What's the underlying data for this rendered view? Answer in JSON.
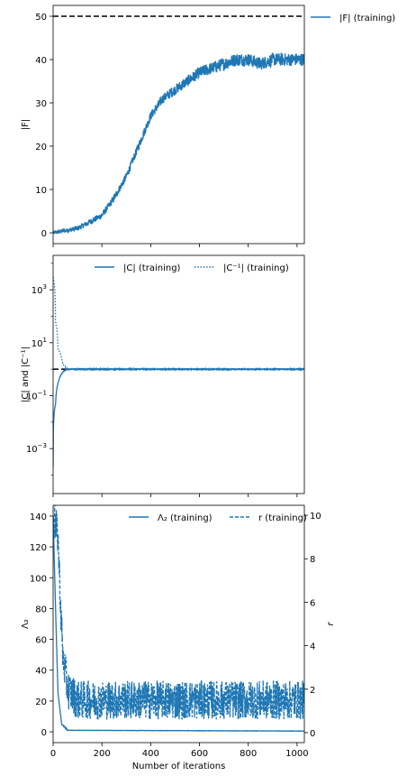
{
  "chart_data": [
    {
      "type": "line",
      "ylabel": "|F|",
      "xlim": [
        0,
        1030
      ],
      "ylim": [
        -2.5,
        52.5
      ],
      "yticks": [
        0,
        10,
        20,
        30,
        40,
        50
      ],
      "xticks": [
        0,
        200,
        400,
        600,
        800,
        1000
      ],
      "grid": false,
      "legend_placement": "outside-top-right",
      "reference_line": {
        "y": 50,
        "style": "dashed",
        "color": "#000000"
      },
      "series": [
        {
          "name": "|F| (training)",
          "color": "#1f77b4",
          "style": "solid",
          "noise": 1.5,
          "points": [
            [
              0,
              0
            ],
            [
              100,
              1
            ],
            [
              200,
              4
            ],
            [
              250,
              8
            ],
            [
              300,
              13
            ],
            [
              350,
              20
            ],
            [
              400,
              27
            ],
            [
              450,
              31
            ],
            [
              500,
              33
            ],
            [
              550,
              35
            ],
            [
              600,
              37
            ],
            [
              650,
              38
            ],
            [
              700,
              39
            ],
            [
              750,
              40
            ],
            [
              800,
              40
            ],
            [
              850,
              39
            ],
            [
              900,
              40
            ],
            [
              950,
              40
            ],
            [
              1000,
              40
            ],
            [
              1030,
              40
            ]
          ]
        }
      ]
    },
    {
      "type": "line",
      "ylabel": "|C| and |C⁻¹|",
      "yscale": "log",
      "xlim": [
        0,
        1030
      ],
      "ylim": [
        2e-05,
        20000
      ],
      "yticks": [
        {
          "value": 0.001,
          "base": "10",
          "exp": "−3"
        },
        {
          "value": 0.1,
          "base": "10",
          "exp": "−1"
        },
        {
          "value": 10,
          "base": "10",
          "exp": "1"
        },
        {
          "value": 1000,
          "base": "10",
          "exp": "3"
        }
      ],
      "xticks": [
        0,
        200,
        400,
        600,
        800,
        1000
      ],
      "grid": false,
      "legend_placement": "top-right",
      "reference_line": {
        "y": 1,
        "style": "dashed",
        "color": "#000000"
      },
      "series": [
        {
          "name": "|C| (training)",
          "color": "#1f77b4",
          "style": "solid",
          "noise": 0.04,
          "points": [
            [
              0,
              0.0002
            ],
            [
              10,
              0.05
            ],
            [
              20,
              0.3
            ],
            [
              40,
              0.8
            ],
            [
              60,
              1.0
            ],
            [
              1030,
              1.0
            ]
          ]
        },
        {
          "name": "|C⁻¹| (training)",
          "color": "#1f77b4",
          "style": "dotted",
          "noise": 0.04,
          "points": [
            [
              0,
              3000
            ],
            [
              10,
              60
            ],
            [
              20,
              6
            ],
            [
              40,
              1.5
            ],
            [
              60,
              1.0
            ],
            [
              1030,
              1.0
            ]
          ]
        }
      ]
    },
    {
      "type": "line",
      "ylabel": "Λ₂",
      "ylabel_right": "r",
      "xlabel": "Number of iterations",
      "xlim": [
        0,
        1030
      ],
      "ylim": [
        -7,
        147
      ],
      "ylim_right": [
        -0.46,
        10.46
      ],
      "yticks": [
        0,
        20,
        40,
        60,
        80,
        100,
        120,
        140
      ],
      "yticks_right": [
        0,
        2,
        4,
        6,
        8,
        10
      ],
      "xticks": [
        0,
        200,
        400,
        600,
        800,
        1000
      ],
      "grid": false,
      "legend_placement": "top-right",
      "series": [
        {
          "name": "Λ₂ (training)",
          "axis": "left",
          "color": "#1f77b4",
          "style": "solid",
          "noise": 0.3,
          "points": [
            [
              0,
              140
            ],
            [
              10,
              80
            ],
            [
              20,
              25
            ],
            [
              35,
              5
            ],
            [
              60,
              1
            ],
            [
              1030,
              0.5
            ]
          ]
        },
        {
          "name": "r (training)",
          "axis": "right",
          "color": "#1f77b4",
          "style": "dashed",
          "noise": 0.9,
          "points": [
            [
              0,
              10
            ],
            [
              20,
              9
            ],
            [
              30,
              6
            ],
            [
              40,
              3.5
            ],
            [
              60,
              2
            ],
            [
              100,
              1.5
            ],
            [
              1030,
              1.5
            ]
          ]
        }
      ]
    }
  ]
}
